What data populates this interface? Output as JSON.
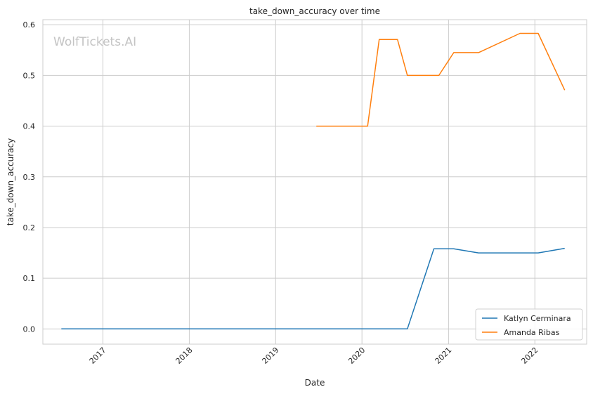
{
  "watermark": "WolfTickets.AI",
  "chart_data": {
    "type": "line",
    "title": "take_down_accuracy over time",
    "xlabel": "Date",
    "ylabel": "take_down_accuracy",
    "xlim": [
      "2016-04-22",
      "2022-08-08"
    ],
    "ylim": [
      -0.03,
      0.61
    ],
    "x_ticks": [
      "2017-01-01",
      "2018-01-01",
      "2019-01-01",
      "2020-01-01",
      "2021-01-01",
      "2022-01-01"
    ],
    "x_tick_labels": [
      "2017",
      "2018",
      "2019",
      "2020",
      "2021",
      "2022"
    ],
    "y_ticks": [
      0.0,
      0.1,
      0.2,
      0.3,
      0.4,
      0.5,
      0.6
    ],
    "y_tick_labels": [
      "0.0",
      "0.1",
      "0.2",
      "0.3",
      "0.4",
      "0.5",
      "0.6"
    ],
    "grid": true,
    "legend_position": "bottom-right",
    "series": [
      {
        "name": "Katlyn Cerminara",
        "color": "#1f77b4",
        "points": [
          {
            "x": "2016-07-09",
            "y": 0.0
          },
          {
            "x": "2020-07-11",
            "y": 0.0
          },
          {
            "x": "2020-10-31",
            "y": 0.158
          },
          {
            "x": "2021-01-23",
            "y": 0.158
          },
          {
            "x": "2021-05-08",
            "y": 0.15
          },
          {
            "x": "2022-01-15",
            "y": 0.15
          },
          {
            "x": "2022-05-07",
            "y": 0.159
          }
        ]
      },
      {
        "name": "Amanda Ribas",
        "color": "#ff7f0e",
        "points": [
          {
            "x": "2019-06-22",
            "y": 0.4
          },
          {
            "x": "2020-01-25",
            "y": 0.4
          },
          {
            "x": "2020-03-14",
            "y": 0.571
          },
          {
            "x": "2020-05-30",
            "y": 0.571
          },
          {
            "x": "2020-07-11",
            "y": 0.5
          },
          {
            "x": "2020-11-21",
            "y": 0.5
          },
          {
            "x": "2021-01-23",
            "y": 0.545
          },
          {
            "x": "2021-05-08",
            "y": 0.545
          },
          {
            "x": "2021-10-30",
            "y": 0.583
          },
          {
            "x": "2022-01-15",
            "y": 0.583
          },
          {
            "x": "2022-05-07",
            "y": 0.471
          }
        ]
      }
    ]
  }
}
